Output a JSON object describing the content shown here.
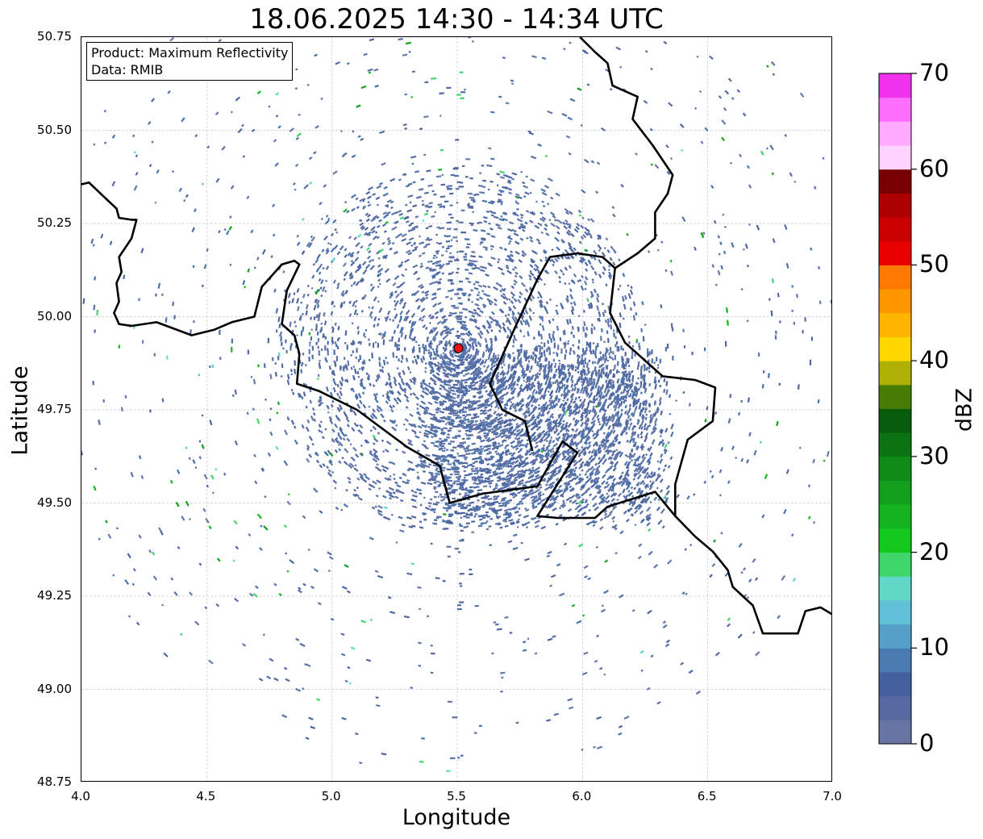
{
  "title": "18.06.2025 14:30 - 14:34 UTC",
  "info_box": {
    "product_line": "Product: Maximum Reflectivity",
    "data_line": "Data: RMIB"
  },
  "axes": {
    "xlabel": "Longitude",
    "ylabel": "Latitude",
    "x_ticks": [
      "4.0",
      "4.5",
      "5.0",
      "5.5",
      "6.0",
      "6.5",
      "7.0"
    ],
    "y_ticks": [
      "50.75",
      "50.50",
      "50.25",
      "50.00",
      "49.75",
      "49.50",
      "49.25",
      "49.00",
      "48.75"
    ],
    "xlim": [
      4.0,
      7.0
    ],
    "ylim": [
      48.75,
      50.75
    ],
    "grid": true
  },
  "radar_site": {
    "lon": 5.505,
    "lat": 49.915,
    "color": "#e8141a"
  },
  "colorbar": {
    "label": "dBZ",
    "ticks": [
      "0",
      "10",
      "20",
      "30",
      "40",
      "50",
      "60",
      "70"
    ],
    "range": [
      0,
      70
    ],
    "colors": [
      "#6675a3",
      "#5668a0",
      "#45609f",
      "#4a7bb0",
      "#55a0c8",
      "#60c1d8",
      "#5fd8c8",
      "#3ed66a",
      "#14c81e",
      "#14b41e",
      "#12a01c",
      "#0f8c18",
      "#0b7312",
      "#075c0b",
      "#467b04",
      "#aeb006",
      "#ffd700",
      "#ffb400",
      "#ff9600",
      "#ff7800",
      "#e60000",
      "#c80000",
      "#aa0000",
      "#780000",
      "#ffd2ff",
      "#ffaaff",
      "#ff6eff",
      "#ee32ee"
    ]
  },
  "borders": {
    "belgium_luxembourg": [
      [
        4.0,
        50.355
      ],
      [
        4.03,
        50.36
      ],
      [
        4.1,
        50.315
      ],
      [
        4.14,
        50.29
      ],
      [
        4.15,
        50.265
      ],
      [
        4.2,
        50.26
      ],
      [
        4.22,
        50.26
      ],
      [
        4.2,
        50.21
      ],
      [
        4.15,
        50.16
      ],
      [
        4.16,
        50.12
      ],
      [
        4.14,
        50.09
      ],
      [
        4.15,
        50.04
      ],
      [
        4.13,
        50.01
      ],
      [
        4.15,
        49.98
      ],
      [
        4.2,
        49.975
      ],
      [
        4.3,
        49.985
      ],
      [
        4.44,
        49.95
      ],
      [
        4.53,
        49.965
      ],
      [
        4.6,
        49.985
      ],
      [
        4.69,
        50.0
      ],
      [
        4.72,
        50.08
      ],
      [
        4.8,
        50.14
      ],
      [
        4.85,
        50.15
      ],
      [
        4.87,
        50.14
      ],
      [
        4.82,
        50.07
      ],
      [
        4.8,
        49.98
      ],
      [
        4.85,
        49.95
      ],
      [
        4.87,
        49.9
      ],
      [
        4.86,
        49.82
      ],
      [
        4.95,
        49.8
      ],
      [
        5.1,
        49.75
      ],
      [
        5.18,
        49.71
      ],
      [
        5.3,
        49.65
      ],
      [
        5.43,
        49.6
      ],
      [
        5.47,
        49.5
      ],
      [
        5.6,
        49.525
      ],
      [
        5.82,
        49.545
      ],
      [
        5.92,
        49.665
      ],
      [
        5.98,
        49.635
      ],
      [
        5.82,
        49.465
      ],
      [
        5.9,
        49.46
      ],
      [
        6.05,
        49.46
      ],
      [
        6.1,
        49.49
      ],
      [
        6.29,
        49.53
      ],
      [
        6.37,
        49.465
      ],
      [
        6.45,
        49.41
      ],
      [
        6.52,
        49.37
      ],
      [
        6.58,
        49.32
      ],
      [
        6.6,
        49.275
      ],
      [
        6.68,
        49.225
      ],
      [
        6.72,
        49.15
      ],
      [
        6.86,
        49.15
      ],
      [
        6.89,
        49.21
      ],
      [
        6.95,
        49.22
      ],
      [
        7.0,
        49.2
      ]
    ],
    "lux_germany": [
      [
        6.37,
        49.465
      ],
      [
        6.37,
        49.55
      ],
      [
        6.42,
        49.67
      ],
      [
        6.52,
        49.72
      ],
      [
        6.53,
        49.81
      ],
      [
        6.45,
        49.83
      ],
      [
        6.32,
        49.84
      ],
      [
        6.27,
        49.87
      ],
      [
        6.22,
        49.9
      ],
      [
        6.17,
        49.93
      ],
      [
        6.11,
        50.01
      ],
      [
        6.13,
        50.13
      ]
    ],
    "belgium_germany": [
      [
        6.13,
        50.13
      ],
      [
        6.08,
        50.16
      ],
      [
        5.98,
        50.17
      ],
      [
        5.87,
        50.16
      ],
      [
        5.82,
        50.1
      ],
      [
        5.73,
        49.97
      ],
      [
        5.63,
        49.82
      ],
      [
        5.68,
        49.75
      ],
      [
        5.77,
        49.72
      ],
      [
        5.8,
        49.64
      ]
    ],
    "north_east": [
      [
        5.99,
        50.75
      ],
      [
        6.05,
        50.71
      ],
      [
        6.1,
        50.68
      ],
      [
        6.12,
        50.62
      ],
      [
        6.22,
        50.59
      ],
      [
        6.2,
        50.53
      ],
      [
        6.28,
        50.46
      ],
      [
        6.36,
        50.38
      ],
      [
        6.34,
        50.33
      ],
      [
        6.29,
        50.28
      ],
      [
        6.29,
        50.21
      ],
      [
        6.22,
        50.17
      ],
      [
        6.13,
        50.13
      ]
    ]
  }
}
